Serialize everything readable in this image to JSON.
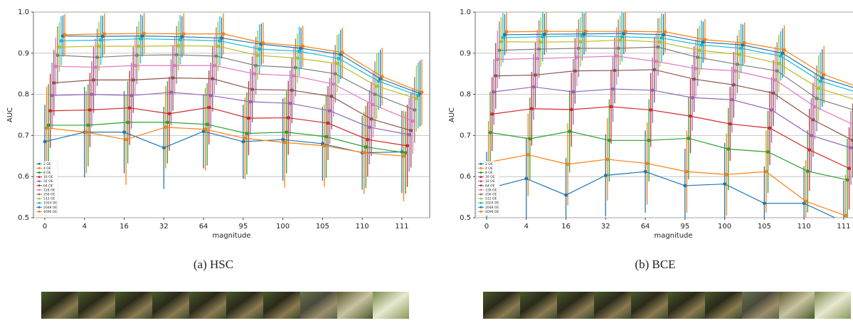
{
  "chart_data": [
    {
      "type": "line",
      "ylabel": "AUC",
      "xlabel": "magnitude",
      "caption": "(a) HSC",
      "grid": true,
      "legend": "lower left",
      "categories": [
        "0",
        "4",
        "16",
        "32",
        "64",
        "95",
        "100",
        "105",
        "110",
        "111"
      ],
      "ylim": [
        0.5,
        1.0
      ],
      "yticks": [
        0.5,
        0.6,
        0.7,
        0.8,
        0.9,
        {
          "value": 1,
          "label": "1.0"
        }
      ],
      "series": [
        {
          "name": "2 OE",
          "color": "#1f77b4",
          "values": [
            0.685,
            0.708,
            0.708,
            0.67,
            0.71,
            0.685,
            0.69,
            0.68,
            0.658,
            0.66
          ],
          "errors": [
            0.09,
            0.11,
            0.1,
            0.1,
            0.09,
            0.09,
            0.1,
            0.09,
            0.09,
            0.1
          ]
        },
        {
          "name": "4 OE",
          "color": "#ff7f0e",
          "values": [
            0.718,
            0.708,
            0.69,
            0.72,
            0.715,
            0.693,
            0.683,
            0.675,
            0.658,
            0.65
          ],
          "errors": [
            0.1,
            0.1,
            0.11,
            0.1,
            0.1,
            0.1,
            0.11,
            0.1,
            0.1,
            0.11
          ]
        },
        {
          "name": "8 OE",
          "color": "#2ca02c",
          "values": [
            0.725,
            0.725,
            0.732,
            0.732,
            0.727,
            0.705,
            0.708,
            0.697,
            0.672,
            0.658
          ],
          "errors": [
            0.1,
            0.1,
            0.1,
            0.1,
            0.1,
            0.1,
            0.1,
            0.1,
            0.1,
            0.1
          ]
        },
        {
          "name": "16 OE",
          "color": "#d62728",
          "values": [
            0.76,
            0.762,
            0.767,
            0.753,
            0.768,
            0.742,
            0.743,
            0.73,
            0.69,
            0.675
          ],
          "errors": [
            0.09,
            0.09,
            0.09,
            0.09,
            0.09,
            0.09,
            0.09,
            0.09,
            0.09,
            0.1
          ]
        },
        {
          "name": "32 OE",
          "color": "#9467bd",
          "values": [
            0.797,
            0.8,
            0.797,
            0.805,
            0.797,
            0.782,
            0.778,
            0.76,
            0.72,
            0.702
          ],
          "errors": [
            0.08,
            0.08,
            0.08,
            0.08,
            0.08,
            0.08,
            0.08,
            0.08,
            0.09,
            0.09
          ]
        },
        {
          "name": "64 OE",
          "color": "#8c564b",
          "values": [
            0.828,
            0.835,
            0.835,
            0.84,
            0.838,
            0.812,
            0.81,
            0.795,
            0.74,
            0.712
          ],
          "errors": [
            0.08,
            0.08,
            0.08,
            0.08,
            0.08,
            0.08,
            0.08,
            0.08,
            0.09,
            0.09
          ]
        },
        {
          "name": "128 OE",
          "color": "#e377c2",
          "values": [
            0.868,
            0.866,
            0.87,
            0.87,
            0.87,
            0.85,
            0.845,
            0.825,
            0.775,
            0.735
          ],
          "errors": [
            0.07,
            0.07,
            0.07,
            0.07,
            0.07,
            0.07,
            0.07,
            0.08,
            0.08,
            0.08
          ]
        },
        {
          "name": "256 OE",
          "color": "#7f7f7f",
          "values": [
            0.895,
            0.89,
            0.895,
            0.896,
            0.893,
            0.87,
            0.865,
            0.85,
            0.8,
            0.762
          ],
          "errors": [
            0.07,
            0.07,
            0.07,
            0.07,
            0.07,
            0.07,
            0.07,
            0.07,
            0.08,
            0.08
          ]
        },
        {
          "name": "512 OE",
          "color": "#bcbd22",
          "values": [
            0.915,
            0.917,
            0.917,
            0.918,
            0.917,
            0.895,
            0.888,
            0.875,
            0.82,
            0.79
          ],
          "errors": [
            0.06,
            0.06,
            0.06,
            0.06,
            0.06,
            0.06,
            0.06,
            0.07,
            0.08,
            0.08
          ]
        },
        {
          "name": "1024 OE",
          "color": "#17becf",
          "values": [
            0.93,
            0.932,
            0.935,
            0.933,
            0.93,
            0.91,
            0.905,
            0.887,
            0.832,
            0.797
          ],
          "errors": [
            0.06,
            0.06,
            0.06,
            0.06,
            0.06,
            0.06,
            0.06,
            0.06,
            0.07,
            0.08
          ]
        },
        {
          "name": "2048 OE",
          "color": "#1f77b4",
          "values": [
            0.942,
            0.941,
            0.942,
            0.94,
            0.937,
            0.922,
            0.912,
            0.897,
            0.838,
            0.802
          ],
          "errors": [
            0.05,
            0.05,
            0.05,
            0.05,
            0.05,
            0.05,
            0.05,
            0.06,
            0.07,
            0.08
          ]
        },
        {
          "name": "4096 OE",
          "color": "#ff7f0e",
          "values": [
            0.945,
            0.947,
            0.948,
            0.947,
            0.947,
            0.925,
            0.917,
            0.902,
            0.843,
            0.805
          ],
          "errors": [
            0.05,
            0.05,
            0.05,
            0.05,
            0.05,
            0.05,
            0.05,
            0.06,
            0.07,
            0.08
          ]
        }
      ]
    },
    {
      "type": "line",
      "ylabel": "AUC",
      "xlabel": "magnitude",
      "caption": "(b) BCE",
      "grid": true,
      "legend": "lower left",
      "categories": [
        "0",
        "4",
        "16",
        "32",
        "64",
        "95",
        "100",
        "105",
        "110",
        "111"
      ],
      "ylim": [
        0.5,
        1.0
      ],
      "yticks": [
        0.5,
        0.6,
        0.7,
        0.8,
        0.9,
        {
          "value": 1,
          "label": "1.0"
        }
      ],
      "series": [
        {
          "name": "2 OE",
          "color": "#1f77b4",
          "values": [
            0.57,
            0.595,
            0.555,
            0.603,
            0.612,
            0.578,
            0.582,
            0.535,
            0.535,
            0.49
          ],
          "errors": [
            0.09,
            0.1,
            0.09,
            0.1,
            0.1,
            0.09,
            0.1,
            0.09,
            0.09,
            0.1
          ]
        },
        {
          "name": "4 OE",
          "color": "#ff7f0e",
          "values": [
            0.635,
            0.653,
            0.63,
            0.642,
            0.632,
            0.612,
            0.605,
            0.612,
            0.54,
            0.505
          ],
          "errors": [
            0.1,
            0.1,
            0.1,
            0.1,
            0.1,
            0.1,
            0.1,
            0.1,
            0.1,
            0.1
          ]
        },
        {
          "name": "8 OE",
          "color": "#2ca02c",
          "values": [
            0.707,
            0.692,
            0.71,
            0.688,
            0.688,
            0.693,
            0.667,
            0.66,
            0.613,
            0.592
          ],
          "errors": [
            0.1,
            0.1,
            0.1,
            0.1,
            0.1,
            0.1,
            0.1,
            0.1,
            0.1,
            0.1
          ]
        },
        {
          "name": "16 OE",
          "color": "#d62728",
          "values": [
            0.752,
            0.765,
            0.763,
            0.77,
            0.762,
            0.747,
            0.728,
            0.718,
            0.665,
            0.62
          ],
          "errors": [
            0.09,
            0.09,
            0.09,
            0.09,
            0.09,
            0.09,
            0.09,
            0.09,
            0.1,
            0.1
          ]
        },
        {
          "name": "32 OE",
          "color": "#9467bd",
          "values": [
            0.806,
            0.818,
            0.806,
            0.813,
            0.81,
            0.792,
            0.787,
            0.762,
            0.7,
            0.67
          ],
          "errors": [
            0.08,
            0.08,
            0.08,
            0.08,
            0.08,
            0.08,
            0.08,
            0.08,
            0.09,
            0.09
          ]
        },
        {
          "name": "64 OE",
          "color": "#8c564b",
          "values": [
            0.845,
            0.847,
            0.857,
            0.858,
            0.86,
            0.837,
            0.823,
            0.803,
            0.738,
            0.688
          ],
          "errors": [
            0.08,
            0.08,
            0.08,
            0.08,
            0.08,
            0.08,
            0.08,
            0.08,
            0.09,
            0.09
          ]
        },
        {
          "name": "128 OE",
          "color": "#e377c2",
          "values": [
            0.885,
            0.887,
            0.89,
            0.893,
            0.88,
            0.863,
            0.857,
            0.835,
            0.77,
            0.725
          ],
          "errors": [
            0.07,
            0.07,
            0.07,
            0.07,
            0.07,
            0.07,
            0.07,
            0.08,
            0.08,
            0.08
          ]
        },
        {
          "name": "256 OE",
          "color": "#7f7f7f",
          "values": [
            0.907,
            0.91,
            0.912,
            0.912,
            0.915,
            0.89,
            0.873,
            0.857,
            0.79,
            0.76
          ],
          "errors": [
            0.07,
            0.07,
            0.07,
            0.07,
            0.07,
            0.07,
            0.07,
            0.07,
            0.08,
            0.08
          ]
        },
        {
          "name": "512 OE",
          "color": "#bcbd22",
          "values": [
            0.928,
            0.927,
            0.928,
            0.932,
            0.927,
            0.907,
            0.897,
            0.875,
            0.815,
            0.785
          ],
          "errors": [
            0.06,
            0.06,
            0.06,
            0.06,
            0.06,
            0.06,
            0.06,
            0.07,
            0.08,
            0.08
          ]
        },
        {
          "name": "1024 OE",
          "color": "#17becf",
          "values": [
            0.938,
            0.94,
            0.942,
            0.94,
            0.937,
            0.92,
            0.912,
            0.893,
            0.832,
            0.803
          ],
          "errors": [
            0.06,
            0.06,
            0.06,
            0.06,
            0.06,
            0.06,
            0.06,
            0.06,
            0.07,
            0.08
          ]
        },
        {
          "name": "2048 OE",
          "color": "#1f77b4",
          "values": [
            0.945,
            0.946,
            0.947,
            0.948,
            0.945,
            0.927,
            0.92,
            0.9,
            0.84,
            0.81
          ],
          "errors": [
            0.05,
            0.05,
            0.05,
            0.05,
            0.05,
            0.05,
            0.05,
            0.06,
            0.07,
            0.08
          ]
        },
        {
          "name": "4096 OE",
          "color": "#ff7f0e",
          "values": [
            0.952,
            0.953,
            0.953,
            0.953,
            0.952,
            0.933,
            0.925,
            0.908,
            0.848,
            0.813
          ],
          "errors": [
            0.05,
            0.05,
            0.05,
            0.05,
            0.05,
            0.05,
            0.05,
            0.06,
            0.07,
            0.08
          ]
        }
      ]
    }
  ]
}
